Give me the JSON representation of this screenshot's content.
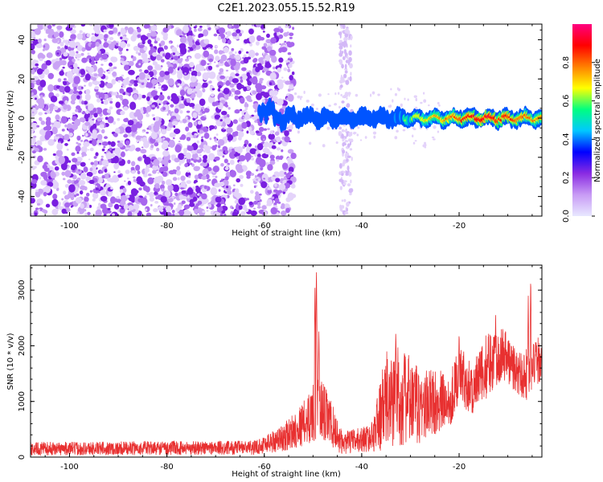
{
  "figure": {
    "title": "C2E1.2023.055.15.52.R19"
  },
  "chart_data": [
    {
      "type": "heatmap",
      "xlabel": "Height of straight line (km)",
      "ylabel": "Frequency (Hz)",
      "xlim": [
        -108,
        -3
      ],
      "ylim": [
        -50,
        48
      ],
      "x_ticks": [
        -100,
        -80,
        -60,
        -40,
        -20
      ],
      "y_ticks": [
        -40,
        -20,
        0,
        20,
        40
      ],
      "colorbar": {
        "label": "Normalized spectral amplitude",
        "range": [
          0,
          1
        ],
        "ticks": [
          0.0,
          0.2,
          0.4,
          0.6,
          0.8
        ],
        "colormap": [
          "#e8e8ff",
          "#c89bf5",
          "#8a2be2",
          "#0000ff",
          "#00c8ff",
          "#00ff80",
          "#ffff00",
          "#ff8000",
          "#ff0000",
          "#ff0080"
        ]
      },
      "signal_band": {
        "frequency": 0,
        "start_km": -61,
        "end_km": -3,
        "description_amplitude": [
          {
            "x": -61,
            "amp": 0.3
          },
          {
            "x": -55,
            "amp": 0.35
          },
          {
            "x": -45,
            "amp": 0.45
          },
          {
            "x": -35,
            "amp": 0.5
          },
          {
            "x": -25,
            "amp": 0.7
          },
          {
            "x": -15,
            "amp": 0.9
          },
          {
            "x": -5,
            "amp": 0.75
          }
        ]
      }
    },
    {
      "type": "line",
      "xlabel": "Height of straight line (km)",
      "ylabel": "SNR (10 * v/v)",
      "xlim": [
        -108,
        -3
      ],
      "ylim": [
        0,
        3450
      ],
      "x_ticks": [
        -100,
        -80,
        -60,
        -40,
        -20
      ],
      "y_ticks": [
        0,
        1000,
        2000,
        3000
      ],
      "color": "#e83030",
      "envelope": [
        {
          "x": -108,
          "base": 150,
          "amp": 120
        },
        {
          "x": -62,
          "base": 170,
          "amp": 130
        },
        {
          "x": -56,
          "base": 350,
          "amp": 250
        },
        {
          "x": -52,
          "base": 600,
          "amp": 400
        },
        {
          "x": -49,
          "base": 900,
          "amp": 600
        },
        {
          "x": -47,
          "base": 700,
          "amp": 500
        },
        {
          "x": -44,
          "base": 250,
          "amp": 200
        },
        {
          "x": -38,
          "base": 350,
          "amp": 250
        },
        {
          "x": -35,
          "base": 1000,
          "amp": 900
        },
        {
          "x": -32,
          "base": 1100,
          "amp": 900
        },
        {
          "x": -28,
          "base": 900,
          "amp": 700
        },
        {
          "x": -25,
          "base": 1000,
          "amp": 600
        },
        {
          "x": -22,
          "base": 1000,
          "amp": 500
        },
        {
          "x": -20,
          "base": 1500,
          "amp": 500
        },
        {
          "x": -17,
          "base": 1200,
          "amp": 500
        },
        {
          "x": -14,
          "base": 1700,
          "amp": 600
        },
        {
          "x": -11,
          "base": 1900,
          "amp": 500
        },
        {
          "x": -8,
          "base": 1500,
          "amp": 400
        },
        {
          "x": -6,
          "base": 1500,
          "amp": 500
        },
        {
          "x": -3,
          "base": 1800,
          "amp": 400
        }
      ],
      "peaks": [
        {
          "x": -49.3,
          "y": 3450
        },
        {
          "x": -49.6,
          "y": 3100
        },
        {
          "x": -48.8,
          "y": 2300
        },
        {
          "x": -5.3,
          "y": 3300
        },
        {
          "x": -5.8,
          "y": 2900
        },
        {
          "x": -20,
          "y": 2300
        },
        {
          "x": -33,
          "y": 2300
        },
        {
          "x": -12.5,
          "y": 2600
        }
      ]
    }
  ]
}
